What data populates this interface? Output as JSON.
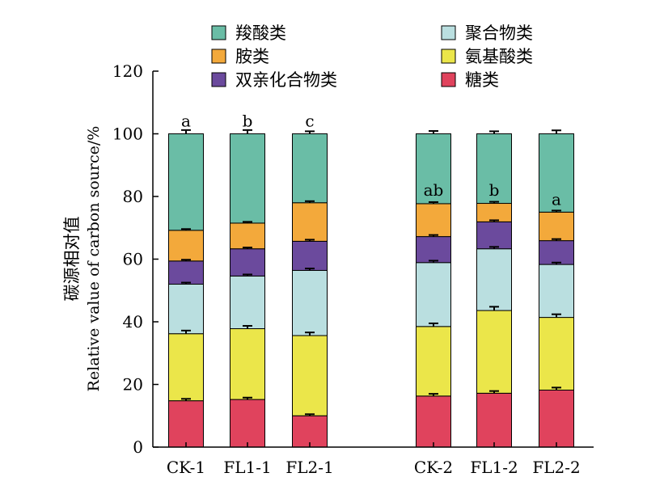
{
  "chart_data": {
    "type": "bar",
    "stacked": true,
    "categories": [
      "CK-1",
      "FL1-1",
      "FL2-1",
      "CK-2",
      "FL1-2",
      "FL2-2"
    ],
    "ylabel_cn": "碳源相对值",
    "ylabel_en": "Relative value of carbon source/%",
    "ylim": [
      0,
      120
    ],
    "yticks": [
      0,
      20,
      40,
      60,
      80,
      100,
      120
    ],
    "legend_position": "top",
    "series": [
      {
        "name": "糖类",
        "color": "#e0435d",
        "values": [
          14.8,
          15.2,
          10.0,
          16.3,
          17.2,
          18.2
        ],
        "errors": [
          0.6,
          0.6,
          0.5,
          0.7,
          0.7,
          0.8
        ]
      },
      {
        "name": "氨基酸类",
        "color": "#ebe64a",
        "values": [
          21.4,
          22.6,
          25.6,
          22.2,
          26.4,
          23.2
        ],
        "errors": [
          1.0,
          0.9,
          1.0,
          1.0,
          1.2,
          1.0
        ]
      },
      {
        "name": "聚合物类",
        "color": "#badfe0",
        "values": [
          15.8,
          16.8,
          20.8,
          20.4,
          19.7,
          16.9
        ],
        "errors": [
          0.5,
          0.5,
          0.6,
          0.6,
          0.6,
          0.6
        ]
      },
      {
        "name": "双亲化合物类",
        "color": "#6b4a9d",
        "values": [
          7.4,
          8.7,
          9.3,
          8.3,
          8.6,
          7.6
        ],
        "errors": [
          0.4,
          0.4,
          0.5,
          0.5,
          0.5,
          0.5
        ]
      },
      {
        "name": "胺类",
        "color": "#f3a93b",
        "values": [
          9.8,
          8.2,
          12.3,
          10.5,
          5.9,
          9.1
        ],
        "errors": [
          0.4,
          0.4,
          0.5,
          0.5,
          0.5,
          0.5
        ]
      },
      {
        "name": "羧酸类",
        "color": "#6abda6",
        "values": [
          30.8,
          28.5,
          22.0,
          22.3,
          22.2,
          25.0
        ],
        "errors": [
          1.2,
          1.2,
          0.8,
          0.9,
          0.8,
          1.1
        ]
      }
    ],
    "annotations": [
      {
        "category": "CK-1",
        "text": "a",
        "at_value": 100
      },
      {
        "category": "FL1-1",
        "text": "b",
        "at_value": 100
      },
      {
        "category": "FL2-1",
        "text": "c",
        "at_value": 100
      },
      {
        "category": "CK-2",
        "text": "ab",
        "at_value": 78
      },
      {
        "category": "FL1-2",
        "text": "b",
        "at_value": 78
      },
      {
        "category": "FL2-2",
        "text": "a",
        "at_value": 75
      }
    ]
  }
}
